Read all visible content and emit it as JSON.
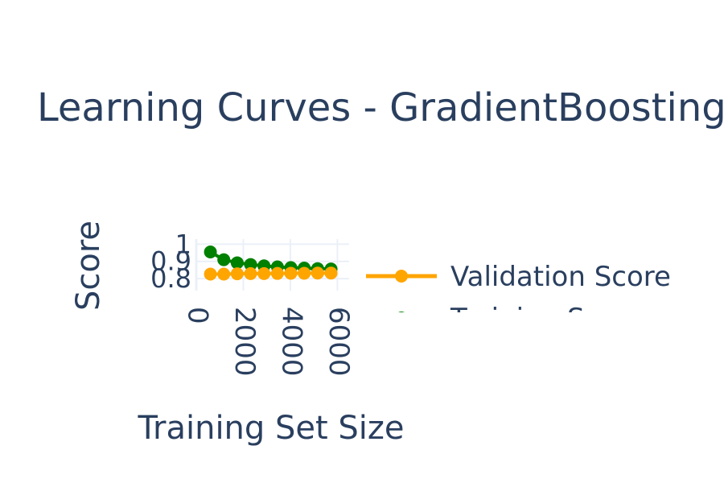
{
  "chart_data": {
    "type": "line",
    "title": "Learning Curves - GradientBoostingClassifier",
    "xlabel": "Training Set Size",
    "ylabel": "Score",
    "xlim": [
      0,
      6500
    ],
    "ylim": [
      0.73,
      1.03
    ],
    "xticks": [
      0,
      2000,
      4000,
      6000
    ],
    "xtick_labels": [
      "0",
      "2000",
      "4000",
      "6000"
    ],
    "yticks": [
      0.8,
      0.9,
      1
    ],
    "ytick_labels": [
      "0.8",
      "0.9",
      "1"
    ],
    "grid": true,
    "legend_position": "right",
    "x": [
      600,
      1170,
      1740,
      2310,
      2880,
      3450,
      4020,
      4590,
      5160,
      5730
    ],
    "series": [
      {
        "name": "Training Score",
        "color": "#008000",
        "values": [
          0.955,
          0.91,
          0.892,
          0.882,
          0.874,
          0.868,
          0.864,
          0.861,
          0.858,
          0.856
        ]
      },
      {
        "name": "Validation Score",
        "color": "#FFA500",
        "values": [
          0.826,
          0.826,
          0.828,
          0.829,
          0.829,
          0.83,
          0.831,
          0.831,
          0.832,
          0.832
        ]
      }
    ]
  }
}
